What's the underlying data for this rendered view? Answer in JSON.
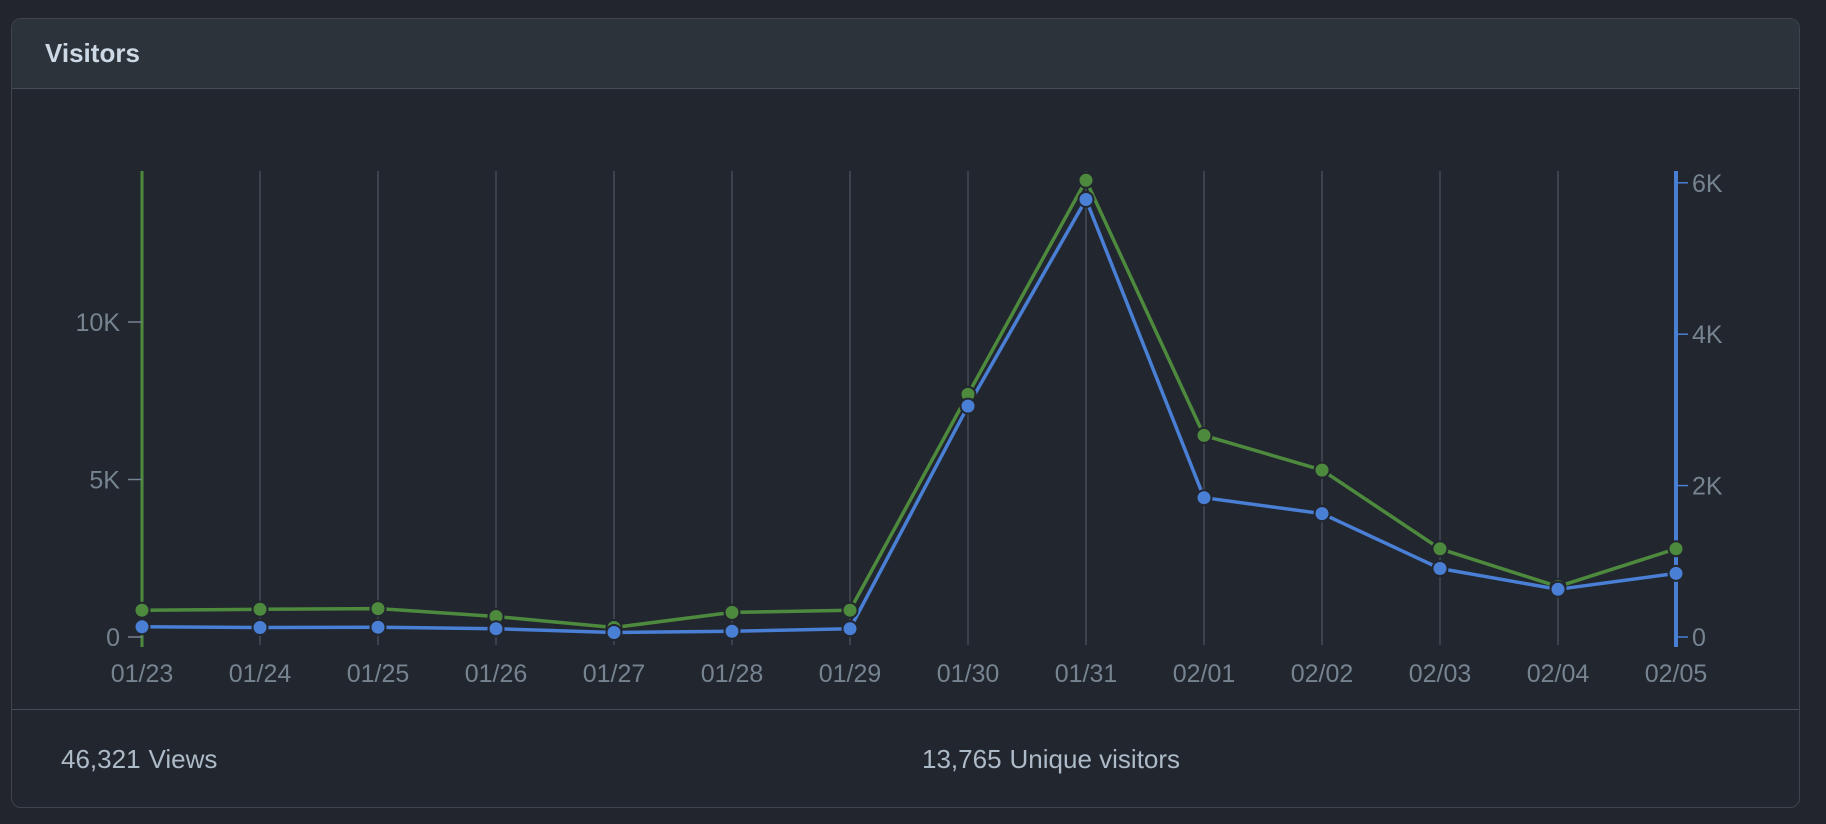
{
  "panel": {
    "title": "Visitors"
  },
  "footer": {
    "views_count": "46,321",
    "views_label": "Views",
    "uniques_count": "13,765",
    "uniques_label": "Unique visitors"
  },
  "colors": {
    "views": "#4e8a3e",
    "uniques": "#4a7fd6",
    "gridline": "#444c56",
    "tick_text": "#768390"
  },
  "chart_data": {
    "type": "line",
    "categories": [
      "01/23",
      "01/24",
      "01/25",
      "01/26",
      "01/27",
      "01/28",
      "01/29",
      "01/30",
      "01/31",
      "02/01",
      "02/02",
      "02/03",
      "02/04",
      "02/05"
    ],
    "series": [
      {
        "name": "Views",
        "axis": "left",
        "values": [
          850,
          880,
          900,
          650,
          300,
          780,
          850,
          7700,
          14500,
          6400,
          5300,
          2800,
          1600,
          2800
        ]
      },
      {
        "name": "Unique visitors",
        "axis": "right",
        "values": [
          135,
          125,
          130,
          110,
          60,
          75,
          110,
          3050,
          5780,
          1840,
          1630,
          905,
          630,
          840
        ]
      }
    ],
    "y_left": {
      "ticks": [
        0,
        5000,
        10000
      ],
      "tick_labels": [
        "0",
        "5K",
        "10K"
      ],
      "lim": [
        0,
        15000
      ]
    },
    "y_right": {
      "ticks": [
        0,
        2000,
        4000,
        6000
      ],
      "tick_labels": [
        "0",
        "2K",
        "4K",
        "6K"
      ],
      "lim": [
        0,
        6250
      ]
    },
    "grid": "vertical",
    "legend": "none"
  }
}
